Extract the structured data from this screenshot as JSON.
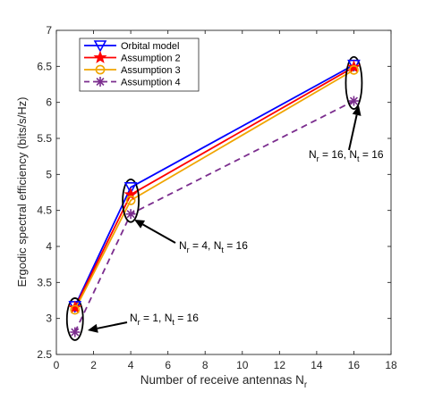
{
  "chart_data": {
    "type": "line",
    "xlabel": "Number of receive antennas N",
    "xlabel_sub": "r",
    "ylabel": "Ergodic spectral efficiency (bits/s/Hz)",
    "xlim": [
      0,
      18
    ],
    "ylim": [
      2.5,
      7
    ],
    "xticks": [
      "0",
      "2",
      "4",
      "6",
      "8",
      "10",
      "12",
      "14",
      "16",
      "18"
    ],
    "yticks": [
      "2.5",
      "3",
      "3.5",
      "4",
      "4.5",
      "5",
      "5.5",
      "6",
      "6.5",
      "7"
    ],
    "x": [
      1,
      4,
      16
    ],
    "grid": false,
    "legend_position": "top-left",
    "series": [
      {
        "name": "Orbital model",
        "values": [
          3.17,
          4.82,
          6.52
        ],
        "color": "#0000ff",
        "marker": "triangle-down",
        "dash": "solid"
      },
      {
        "name": "Assumption 2",
        "values": [
          3.15,
          4.72,
          6.49
        ],
        "color": "#ff0000",
        "marker": "star",
        "dash": "solid"
      },
      {
        "name": "Assumption 3",
        "values": [
          3.12,
          4.64,
          6.45
        ],
        "color": "#f0a400",
        "marker": "circle",
        "dash": "solid"
      },
      {
        "name": "Assumption 4",
        "values": [
          2.81,
          4.45,
          6.02
        ],
        "color": "#7b2d8e",
        "marker": "asterisk",
        "dash": "dashed"
      }
    ],
    "annotations": [
      {
        "label_a": "N",
        "sub_a": "r",
        "eq_a": " = 1, N",
        "sub_b": "t",
        "eq_b": " = 16",
        "x": 1,
        "y": 2.97
      },
      {
        "label_a": "N",
        "sub_a": "r",
        "eq_a": " = 4, N",
        "sub_b": "t",
        "eq_b": " = 16",
        "x": 4,
        "y": 4.65
      },
      {
        "label_a": "N",
        "sub_a": "r",
        "eq_a": " = 16, N",
        "sub_b": "t",
        "eq_b": " = 16",
        "x": 16,
        "y": 6.3
      }
    ]
  }
}
